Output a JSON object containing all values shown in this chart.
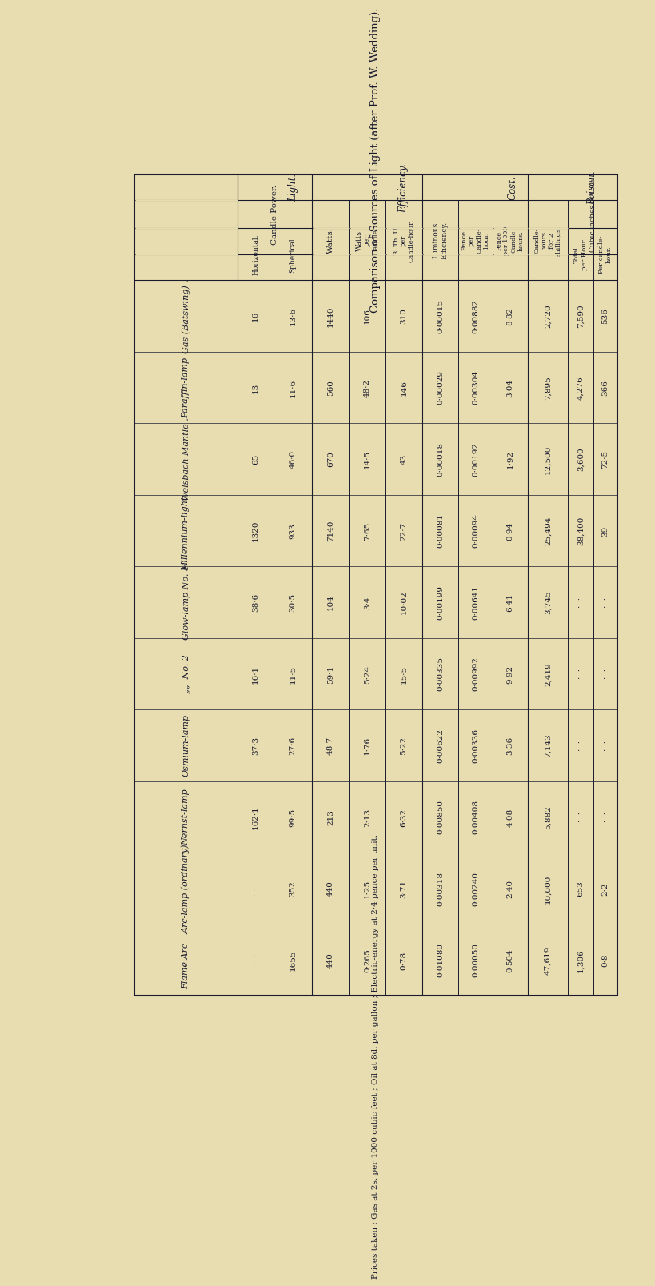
{
  "bg_color": "#e8ddb0",
  "text_color": "#1a1a2e",
  "title": "Comparison of Sources of Light (after Prof. W. Wedding).",
  "subtitle": "Prices taken : Gas at 2s. per 1000 cubic feet ; Oil at 8d. per gallon ; Electric-energy at 2·4 pence per unit.",
  "rows": [
    [
      "Gas (Batswing) .",
      "16",
      "13·6",
      "1440",
      "106",
      "310",
      "0·00015",
      "0·00882",
      "8·82",
      "2,720",
      "7,590",
      "536"
    ],
    [
      "Paraffin-lamp",
      "13",
      "11·6",
      "560",
      "48·2",
      "146",
      "0·00029",
      "0·00304",
      "3·04",
      "7,895",
      "4,276",
      "366"
    ],
    [
      "Welsbach Mantle .",
      "65",
      "46·0",
      "670",
      "14·5",
      "43",
      "0·00018",
      "0·00192",
      "1·92",
      "12,500",
      "3,600",
      "72·5"
    ],
    [
      "Millennium-light .",
      "1320",
      "933",
      "7140",
      "7·65",
      "22·7",
      "0·00081",
      "0·00094",
      "0·94",
      "25,494",
      "38,400",
      "39"
    ],
    [
      "Glow-lamp No. 1",
      "38·6",
      "30·5",
      "104",
      "3·4",
      "10·02",
      "0·00199",
      "0·00641",
      "6·41",
      "3,745",
      "·  ·",
      "·  ·"
    ],
    [
      "„„  No. 2",
      "16·1",
      "11·5",
      "59·1",
      "5·24",
      "15·5",
      "0·00335",
      "0·00992",
      "9·92",
      "2,419",
      "·  ·",
      "·  ·"
    ],
    [
      "Osmium-lamp",
      "37·3",
      "27·6",
      "48·7",
      "1·76",
      "5·22",
      "0·00622",
      "0·00336",
      "3·36",
      "7,143",
      "·  ·",
      "·  ·"
    ],
    [
      "Nernst-lamp",
      "162·1",
      "99·5",
      "213",
      "2·13",
      "6·32",
      "0·00850",
      "0·00408",
      "4·08",
      "5,882",
      "·  ·",
      "·  ·"
    ],
    [
      "Arc-lamp (ordinary)",
      "· · ·",
      "352",
      "440",
      "1·25",
      "3·71",
      "0·00318",
      "0·00240",
      "2·40",
      "10,000",
      "653",
      "2·2"
    ],
    [
      "Flame Arc   .",
      "· · ·",
      "1655",
      "440",
      "0·265",
      "0·78",
      "0·01080",
      "0·00050",
      "0·504",
      "47,619",
      "1,306",
      "0·8"
    ]
  ],
  "col_groups": [
    {
      "label": "Light.",
      "span": [
        0,
        3
      ]
    },
    {
      "label": "Efficiency.",
      "span": [
        3,
        6
      ]
    },
    {
      "label": "Cost.",
      "span": [
        6,
        9
      ]
    },
    {
      "label": "Poison.",
      "span": [
        9,
        11
      ]
    }
  ],
  "subgroup_headers": [
    {
      "label": "Candle Power.",
      "span": [
        0,
        1
      ],
      "sub": [
        "Horizontal.",
        "Spherical."
      ]
    },
    {
      "label": "Watts.",
      "span": [
        2,
        2
      ],
      "sub": []
    },
    {
      "label": "Watts per Candle.",
      "span": [
        3,
        3
      ],
      "sub": []
    },
    {
      "label": "B. Th. U. per Candle-hour.",
      "span": [
        4,
        4
      ],
      "sub": []
    },
    {
      "label": "Luminous Efficiency.",
      "span": [
        5,
        5
      ],
      "sub": []
    },
    {
      "label": "Pence per Candle-hour.",
      "span": [
        6,
        6
      ],
      "sub": []
    },
    {
      "label": "Pence per 1000 Candle-hours.",
      "span": [
        7,
        7
      ],
      "sub": []
    },
    {
      "label": "Candle-hours for 2 shillings.",
      "span": [
        8,
        8
      ],
      "sub": []
    },
    {
      "label": "Cubic inches of CO₂.",
      "span": [
        9,
        10
      ],
      "sub": [
        "Total per Hour.",
        "Per candle-hour."
      ]
    }
  ]
}
